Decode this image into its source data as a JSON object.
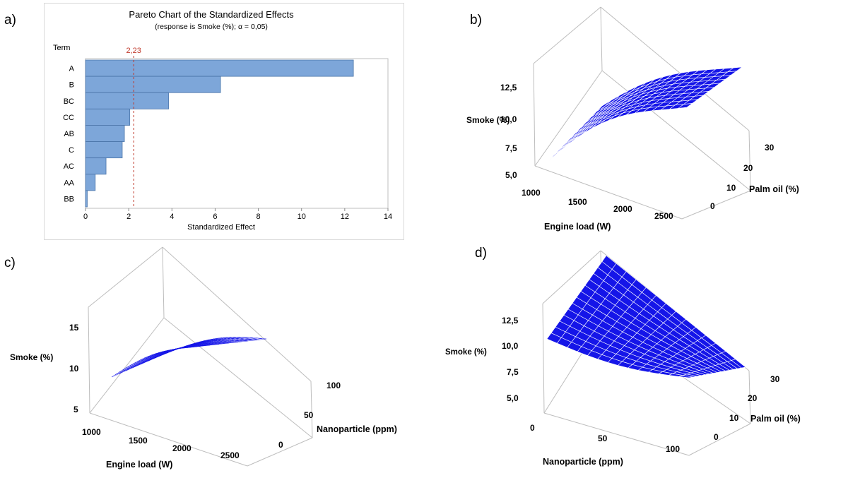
{
  "chart_data": [
    {
      "type": "bar",
      "panel_label": "a)",
      "title": "Pareto Chart of the Standardized Effects",
      "subtitle": "(response is Smoke (%); α = 0,05)",
      "ylabel": "Term",
      "xlabel": "Standardized Effect",
      "orientation": "horizontal",
      "categories": [
        "A",
        "B",
        "BC",
        "CC",
        "AB",
        "C",
        "AC",
        "AA",
        "BB"
      ],
      "values": [
        12.4,
        6.25,
        3.85,
        2.05,
        1.8,
        1.7,
        0.95,
        0.45,
        0.08
      ],
      "xlim": [
        0,
        14
      ],
      "xticks": [
        "0",
        "2",
        "4",
        "6",
        "8",
        "10",
        "12",
        "14"
      ],
      "reference_line": {
        "value": 2.23,
        "label": "2,23"
      },
      "colors": {
        "bar": "#7da6d9",
        "bar_border": "#4a74a8",
        "reference": "#c0392b"
      }
    },
    {
      "type": "surface",
      "panel_label": "b)",
      "xlabel": "Engine load (W)",
      "ylabel": "Palm oil (%)",
      "zlabel": "Smoke (%)",
      "xticks": [
        "1000",
        "1500",
        "2000",
        "2500"
      ],
      "yticks": [
        "0",
        "10",
        "20",
        "30"
      ],
      "zticks": [
        "5,0",
        "7,5",
        "10,0",
        "12,5"
      ],
      "color": "#1515e8"
    },
    {
      "type": "surface",
      "panel_label": "c)",
      "xlabel": "Engine load (W)",
      "ylabel": "Nanoparticle (ppm)",
      "zlabel": "Smoke (%)",
      "xticks": [
        "1000",
        "1500",
        "2000",
        "2500"
      ],
      "yticks": [
        "0",
        "50",
        "100"
      ],
      "zticks": [
        "5",
        "10",
        "15"
      ],
      "color": "#1515e8"
    },
    {
      "type": "surface",
      "panel_label": "d)",
      "xlabel": "Nanoparticle (ppm)",
      "ylabel": "Palm oil (%)",
      "zlabel": "Smoke (%)",
      "xticks": [
        "0",
        "50",
        "100"
      ],
      "yticks": [
        "0",
        "10",
        "20",
        "30"
      ],
      "zticks": [
        "5,0",
        "7,5",
        "10,0",
        "12,5"
      ],
      "color": "#1515e8"
    }
  ]
}
